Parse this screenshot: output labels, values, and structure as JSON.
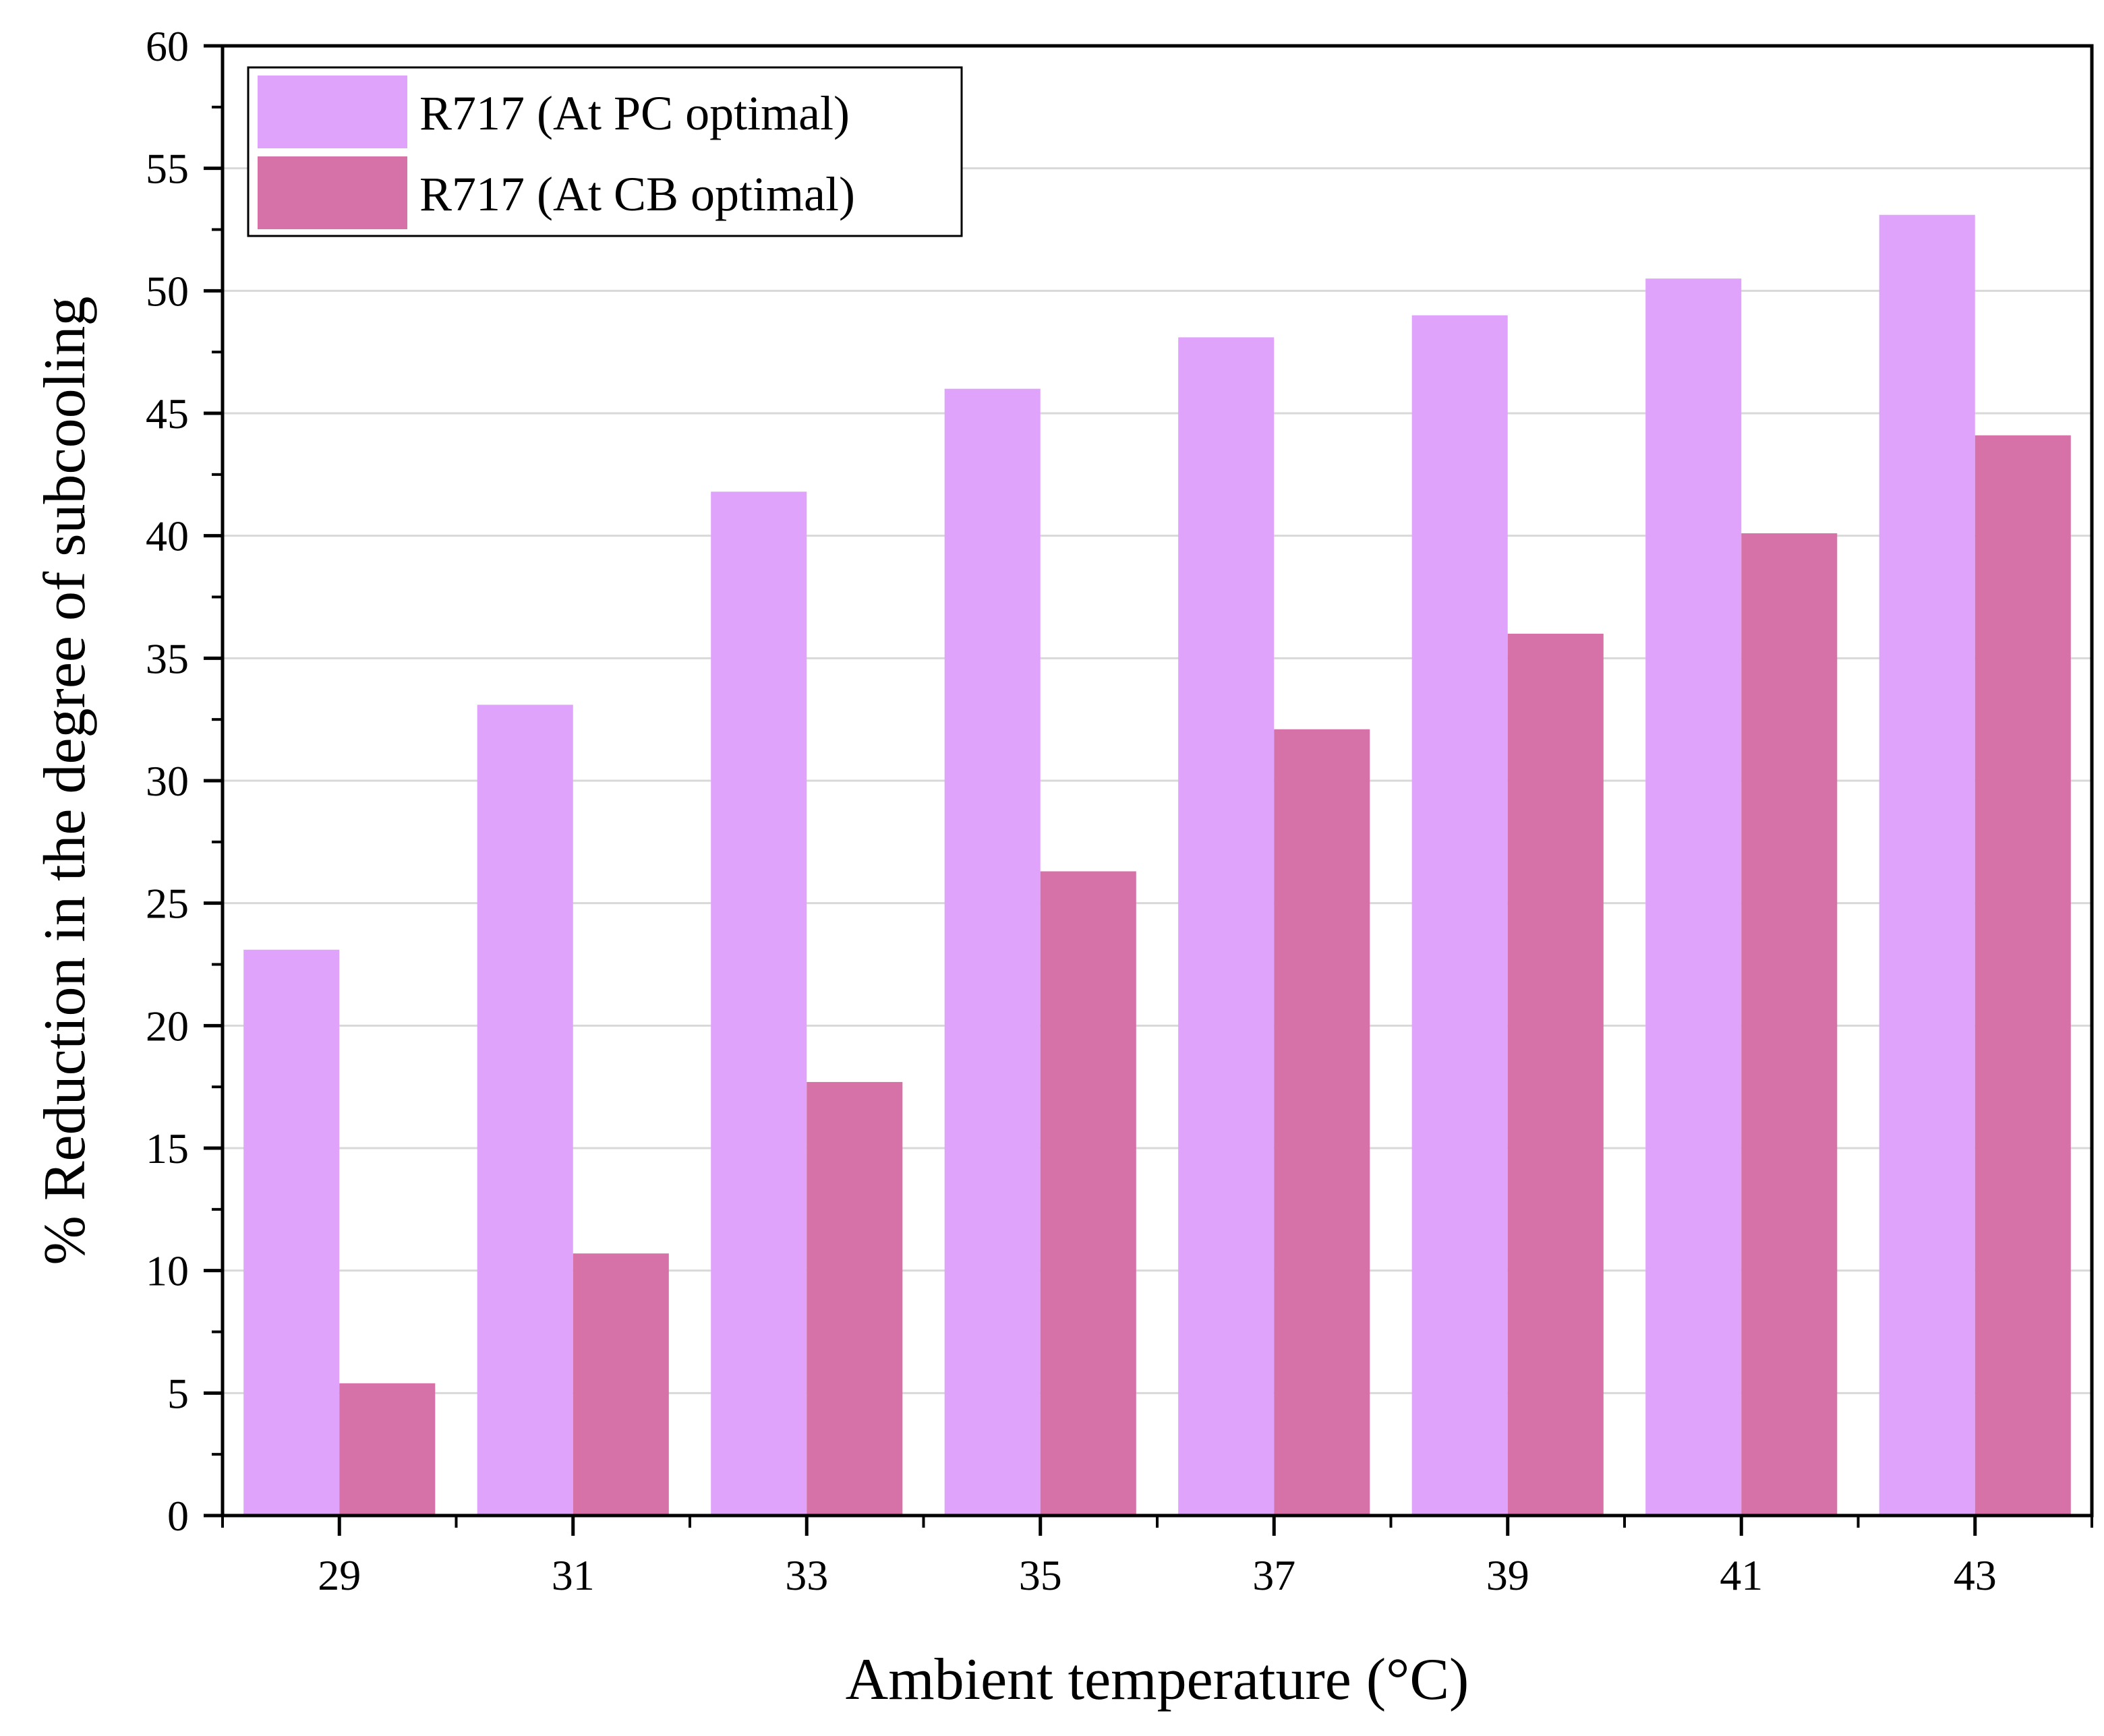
{
  "chart_data": {
    "type": "bar",
    "xlabel": "Ambient temperature (°C)",
    "ylabel": "% Reduction in the degree of subcooling",
    "categories": [
      "29",
      "31",
      "33",
      "35",
      "37",
      "39",
      "41",
      "43"
    ],
    "ylim": [
      0,
      60
    ],
    "yticks": [
      "0",
      "5",
      "10",
      "15",
      "20",
      "25",
      "30",
      "35",
      "40",
      "45",
      "50",
      "55",
      "60"
    ],
    "grid": "horizontal",
    "legend_position": "top-left",
    "series": [
      {
        "name": "R717 (At PC optimal)",
        "color": "#e0a3fc",
        "values": [
          23.1,
          33.1,
          41.8,
          46.0,
          48.1,
          49.0,
          50.5,
          53.1
        ]
      },
      {
        "name": "R717 (At CB optimal)",
        "color": "#d672a8",
        "values": [
          5.4,
          10.7,
          17.7,
          26.3,
          32.1,
          36.0,
          40.1,
          44.1
        ]
      }
    ]
  }
}
